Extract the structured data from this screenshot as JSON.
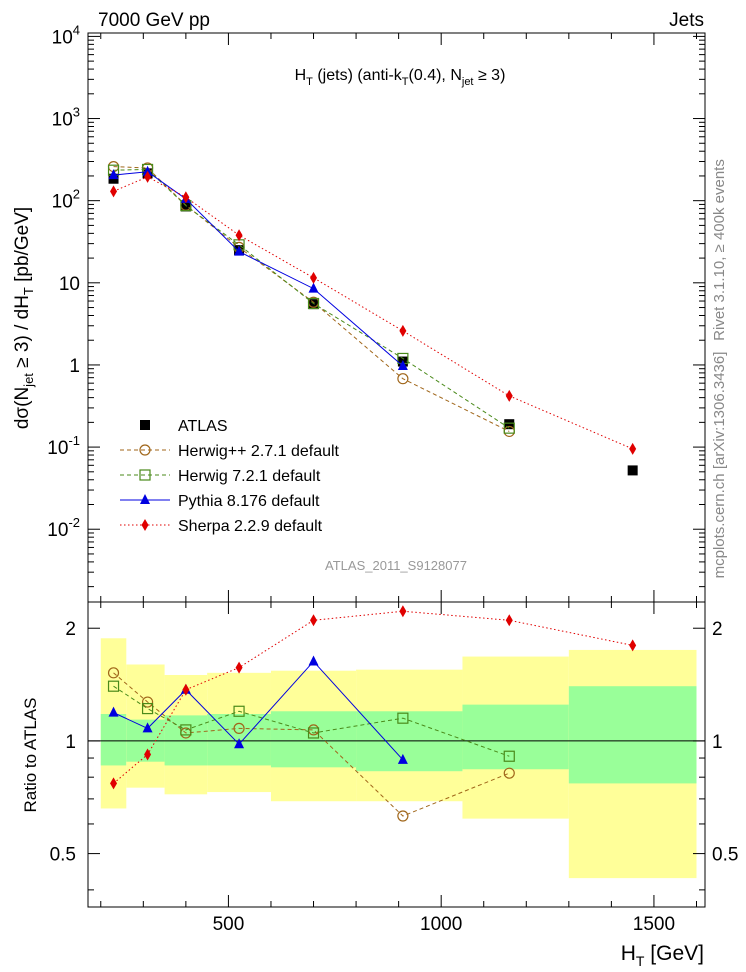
{
  "header": {
    "left": "7000 GeV pp",
    "right": "Jets"
  },
  "plot_title": {
    "main": "H",
    "sub1": "T",
    "part2": " (jets) (anti-k",
    "sub2": "T",
    "part3": "(0.4), N",
    "sub3": "jet",
    "part4": " ≥ 3)"
  },
  "side_labels": {
    "rivet": "Rivet 3.1.10, ≥ 400k events",
    "mcplots": "mcplots.cern.ch [arXiv:1306.3436]"
  },
  "analysis_id": "ATLAS_2011_S9128077",
  "y_label": {
    "a": "dσ(N",
    "sub1": "jet",
    "b": " ≥ 3) / dH",
    "sub2": "T",
    "c": " [pb/GeV]"
  },
  "ratio_label": "Ratio to ATLAS",
  "x_label": {
    "a": "H",
    "sub": "T",
    "b": " [GeV]"
  },
  "legend": [
    {
      "label": "ATLAS",
      "color": "#000000",
      "marker": "square-filled",
      "line": "none"
    },
    {
      "label": "Herwig++ 2.7.1 default",
      "color": "#a0661a",
      "marker": "circle-open",
      "line": "dashed"
    },
    {
      "label": "Herwig 7.2.1 default",
      "color": "#4a8a1a",
      "marker": "square-open",
      "line": "dashed"
    },
    {
      "label": "Pythia 8.176 default",
      "color": "#0000e0",
      "marker": "triangle-filled",
      "line": "solid"
    },
    {
      "label": "Sherpa 2.2.9 default",
      "color": "#e00000",
      "marker": "diamond-filled",
      "line": "dotted"
    }
  ],
  "chart_data": {
    "type": "scatter",
    "title": "H_T (jets) (anti-k_T(0.4), N_jet ≥ 3)",
    "xlabel": "H_T [GeV]",
    "ylabel": "dσ(N_jet ≥ 3) / dH_T [pb/GeV]",
    "ratio_ylabel": "Ratio to ATLAS",
    "xlim": [
      170,
      1620
    ],
    "ylim": [
      0.0013,
      11000
    ],
    "yscale": "log",
    "ratio_ylim": [
      0.36,
      2.35
    ],
    "ratio_yscale": "log",
    "x_ticks": [
      500,
      1000,
      1500
    ],
    "x_tick_labels": [
      "500",
      "1000",
      "1500"
    ],
    "y_ticks": [
      0.01,
      0.1,
      1,
      10,
      100,
      1000,
      10000
    ],
    "y_tick_labels": [
      {
        "base": "10",
        "exp": "-2"
      },
      {
        "base": "10",
        "exp": "-1"
      },
      {
        "base": "1",
        "exp": ""
      },
      {
        "base": "10",
        "exp": ""
      },
      {
        "base": "10",
        "exp": "2"
      },
      {
        "base": "10",
        "exp": "3"
      },
      {
        "base": "10",
        "exp": "4"
      }
    ],
    "ratio_ticks": [
      0.5,
      1,
      2
    ],
    "ratio_tick_labels": [
      "0.5",
      "1",
      "2"
    ],
    "series": [
      {
        "name": "ATLAS",
        "x": [
          230,
          310,
          400,
          525,
          700,
          910,
          1160,
          1450
        ],
        "y": [
          185,
          215,
          85,
          25,
          5.5,
          1.1,
          0.19,
          0.052
        ]
      },
      {
        "name": "Herwig++ 2.7.1 default",
        "x": [
          230,
          310,
          400,
          525,
          700,
          910,
          1160
        ],
        "y": [
          260,
          250,
          88,
          27,
          5.8,
          0.68,
          0.155
        ]
      },
      {
        "name": "Herwig 7.2.1 default",
        "x": [
          230,
          310,
          400,
          525,
          700,
          910,
          1160
        ],
        "y": [
          235,
          240,
          87,
          29,
          5.6,
          1.2,
          0.17
        ]
      },
      {
        "name": "Pythia 8.176 default",
        "x": [
          230,
          310,
          400,
          525,
          700,
          910
        ],
        "y": [
          205,
          225,
          105,
          24,
          8.5,
          0.97
        ]
      },
      {
        "name": "Sherpa 2.2.9 default",
        "x": [
          230,
          310,
          400,
          525,
          700,
          910,
          1160,
          1450
        ],
        "y": [
          130,
          195,
          110,
          38,
          11.5,
          2.6,
          0.42,
          0.095
        ]
      }
    ],
    "ratio_series": [
      {
        "name": "Herwig++ 2.7.1 default",
        "x": [
          230,
          310,
          400,
          525,
          700,
          910,
          1160
        ],
        "y": [
          1.52,
          1.27,
          1.05,
          1.08,
          1.07,
          0.63,
          0.82
        ]
      },
      {
        "name": "Herwig 7.2.1 default",
        "x": [
          230,
          310,
          400,
          525,
          700,
          910,
          1160
        ],
        "y": [
          1.4,
          1.22,
          1.07,
          1.2,
          1.05,
          1.15,
          0.91
        ]
      },
      {
        "name": "Pythia 8.176 default",
        "x": [
          230,
          310,
          400,
          525,
          700,
          910
        ],
        "y": [
          1.19,
          1.08,
          1.37,
          0.98,
          1.63,
          0.89
        ]
      },
      {
        "name": "Sherpa 2.2.9 default",
        "x": [
          230,
          310,
          400,
          525,
          700,
          910,
          1160,
          1450
        ],
        "y": [
          0.77,
          0.92,
          1.37,
          1.57,
          2.1,
          2.22,
          2.1,
          1.8
        ]
      }
    ],
    "uncertainty_bins": [
      {
        "lo": 200,
        "hi": 260,
        "inner": [
          0.86,
          1.18
        ],
        "outer": [
          0.66,
          1.88
        ]
      },
      {
        "lo": 260,
        "hi": 350,
        "inner": [
          0.88,
          1.14
        ],
        "outer": [
          0.75,
          1.6
        ]
      },
      {
        "lo": 350,
        "hi": 450,
        "inner": [
          0.86,
          1.17
        ],
        "outer": [
          0.72,
          1.5
        ]
      },
      {
        "lo": 450,
        "hi": 600,
        "inner": [
          0.86,
          1.18
        ],
        "outer": [
          0.73,
          1.52
        ]
      },
      {
        "lo": 600,
        "hi": 800,
        "inner": [
          0.85,
          1.2
        ],
        "outer": [
          0.69,
          1.54
        ]
      },
      {
        "lo": 800,
        "hi": 1050,
        "inner": [
          0.83,
          1.2
        ],
        "outer": [
          0.69,
          1.55
        ]
      },
      {
        "lo": 1050,
        "hi": 1300,
        "inner": [
          0.84,
          1.25
        ],
        "outer": [
          0.62,
          1.68
        ]
      },
      {
        "lo": 1300,
        "hi": 1600,
        "inner": [
          0.77,
          1.4
        ],
        "outer": [
          0.43,
          1.75
        ]
      }
    ]
  }
}
